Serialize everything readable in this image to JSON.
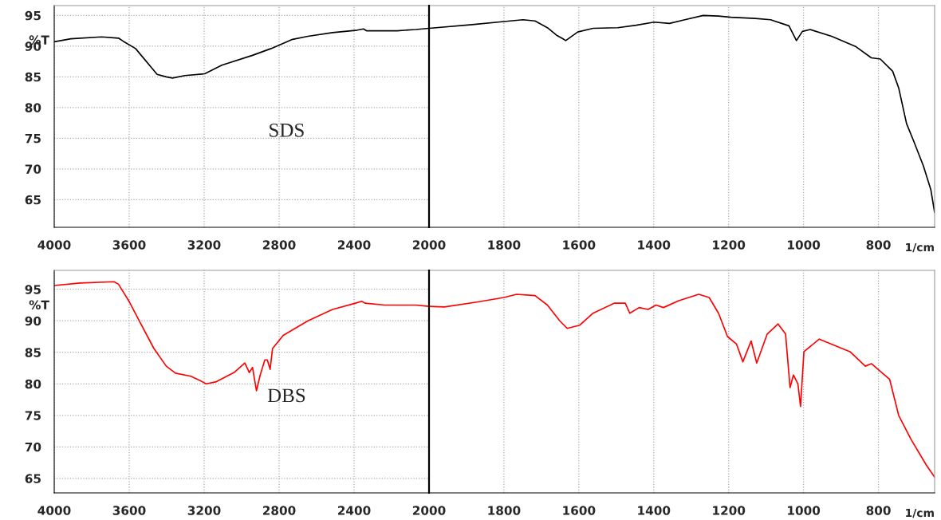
{
  "chart_data": [
    {
      "type": "line",
      "ylabel": "%T",
      "annotations": [
        "SDS"
      ],
      "grid": true,
      "xlim": [
        4000,
        2000
      ],
      "xticks": [
        4000,
        3600,
        3200,
        2800,
        2400,
        2000
      ],
      "ylim": [
        60.5,
        96.6
      ],
      "yticks": [
        65,
        70,
        75,
        80,
        85,
        90,
        95
      ],
      "series": [
        {
          "color": "#000000",
          "x": [
            4000,
            3911,
            3747,
            3657,
            3632,
            3566,
            3451,
            3402,
            3369,
            3303,
            3197,
            3106,
            2942,
            2843,
            2728,
            2646,
            2515,
            2383,
            2350,
            2334,
            2170,
            2071,
            2000
          ],
          "values": [
            90.7,
            91.2,
            91.5,
            91.3,
            90.8,
            89.6,
            85.4,
            85.0,
            84.8,
            85.2,
            85.5,
            86.9,
            88.5,
            89.6,
            91.1,
            91.6,
            92.2,
            92.6,
            92.8,
            92.5,
            92.5,
            92.7,
            92.9
          ]
        }
      ]
    },
    {
      "type": "line",
      "xlabel": "1/cm",
      "grid": true,
      "tick_labels": "x",
      "xlim": [
        2000,
        650
      ],
      "xticks": [
        1800,
        1600,
        1400,
        1200,
        1000,
        800
      ],
      "ylim": [
        60.5,
        96.6
      ],
      "series": [
        {
          "color": "#000000",
          "x": [
            2000,
            1885,
            1800,
            1749,
            1717,
            1684,
            1660,
            1643,
            1635,
            1603,
            1562,
            1496,
            1447,
            1399,
            1358,
            1317,
            1268,
            1227,
            1194,
            1129,
            1088,
            1039,
            1019,
            1003,
            982,
            925,
            860,
            819,
            795,
            762,
            746,
            725,
            705,
            680,
            660,
            650
          ],
          "values": [
            92.9,
            93.5,
            94.0,
            94.3,
            94.1,
            93.0,
            91.8,
            91.2,
            90.9,
            92.3,
            92.9,
            93.0,
            93.4,
            93.9,
            93.7,
            94.3,
            95.0,
            94.9,
            94.7,
            94.5,
            94.3,
            93.3,
            90.9,
            92.4,
            92.7,
            91.6,
            89.9,
            88.1,
            87.9,
            85.9,
            83.2,
            77.4,
            74.4,
            70.5,
            66.6,
            62.9
          ]
        }
      ]
    },
    {
      "type": "line",
      "ylabel": "%T",
      "annotations": [
        "DBS"
      ],
      "grid": true,
      "xlim": [
        4000,
        2000
      ],
      "xticks": [
        4000,
        3600,
        3200,
        2800,
        2400,
        2000
      ],
      "ylim": [
        62.7,
        98.0
      ],
      "yticks": [
        65,
        70,
        75,
        80,
        85,
        90,
        95
      ],
      "series": [
        {
          "color": "#ff0000",
          "x": [
            4000,
            3862,
            3681,
            3657,
            3632,
            3599,
            3550,
            3468,
            3402,
            3353,
            3271,
            3221,
            3189,
            3139,
            3040,
            2983,
            2959,
            2942,
            2921,
            2901,
            2876,
            2863,
            2848,
            2835,
            2778,
            2646,
            2515,
            2392,
            2359,
            2342,
            2236,
            2071,
            2000
          ],
          "values": [
            95.6,
            96.0,
            96.2,
            95.8,
            94.6,
            93.0,
            90.2,
            85.6,
            82.8,
            81.7,
            81.2,
            80.5,
            80.0,
            80.3,
            81.8,
            83.3,
            81.8,
            82.6,
            78.9,
            81.4,
            83.8,
            83.8,
            82.3,
            85.6,
            87.7,
            90.0,
            91.8,
            92.8,
            93.1,
            92.8,
            92.5,
            92.5,
            92.3
          ]
        }
      ]
    },
    {
      "type": "line",
      "xlabel": "1/cm",
      "grid": true,
      "tick_labels": "x",
      "xlim": [
        2000,
        650
      ],
      "xticks": [
        1800,
        1600,
        1400,
        1200,
        1000,
        800
      ],
      "ylim": [
        62.7,
        98.0
      ],
      "series": [
        {
          "color": "#ff0000",
          "x": [
            2000,
            1959,
            1869,
            1800,
            1766,
            1717,
            1684,
            1651,
            1631,
            1598,
            1562,
            1505,
            1476,
            1464,
            1439,
            1415,
            1394,
            1374,
            1333,
            1280,
            1252,
            1227,
            1203,
            1179,
            1162,
            1140,
            1125,
            1097,
            1068,
            1048,
            1036,
            1027,
            1015,
            1008,
            999,
            958,
            876,
            835,
            819,
            770,
            746,
            713,
            672,
            650
          ],
          "values": [
            92.3,
            92.2,
            93.0,
            93.7,
            94.2,
            94.0,
            92.5,
            90.0,
            88.8,
            89.3,
            91.2,
            92.8,
            92.8,
            91.2,
            92.1,
            91.8,
            92.5,
            92.1,
            93.2,
            94.2,
            93.7,
            91.2,
            87.5,
            86.3,
            83.5,
            86.8,
            83.3,
            87.9,
            89.5,
            87.9,
            79.4,
            81.4,
            80.0,
            76.4,
            85.1,
            87.1,
            85.1,
            82.8,
            83.2,
            80.7,
            75.0,
            71.2,
            67.1,
            65.2
          ]
        }
      ]
    }
  ]
}
